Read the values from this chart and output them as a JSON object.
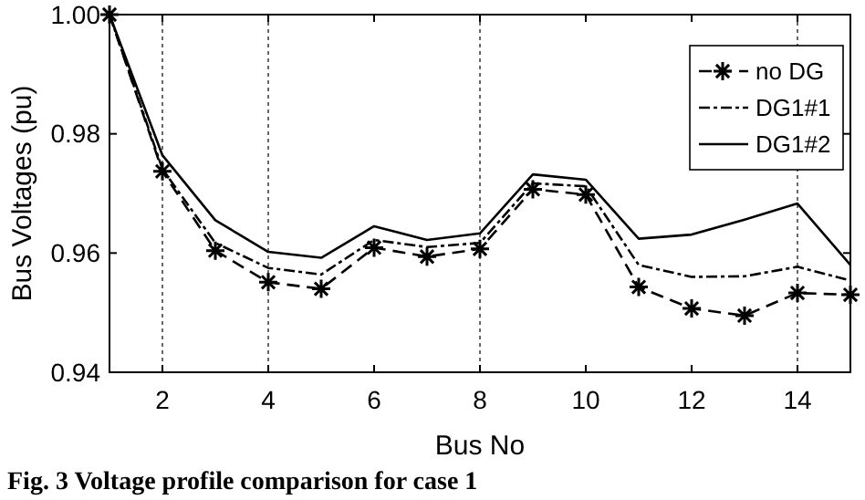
{
  "chart_data": {
    "type": "line",
    "xlabel": "Bus No",
    "ylabel": "Bus Voltages (pu)",
    "x": [
      1,
      2,
      3,
      4,
      5,
      6,
      7,
      8,
      9,
      10,
      11,
      12,
      13,
      14,
      15
    ],
    "series": [
      {
        "name": "no DG",
        "color": "#000000",
        "line_style": "dashed",
        "marker": "cross",
        "values": [
          1.0,
          0.9737,
          0.9604,
          0.9551,
          0.954,
          0.9609,
          0.9594,
          0.9607,
          0.9707,
          0.9698,
          0.9543,
          0.9507,
          0.9495,
          0.9533,
          0.953
        ]
      },
      {
        "name": "DG1#1",
        "color": "#000000",
        "line_style": "dashdot",
        "marker": "none",
        "values": [
          1.0,
          0.9741,
          0.9617,
          0.9575,
          0.9564,
          0.9622,
          0.961,
          0.9617,
          0.9717,
          0.9712,
          0.958,
          0.956,
          0.9561,
          0.9577,
          0.9554
        ]
      },
      {
        "name": "DG1#2",
        "color": "#000000",
        "line_style": "solid",
        "marker": "none",
        "values": [
          1.0,
          0.9764,
          0.9655,
          0.9602,
          0.9592,
          0.9645,
          0.9622,
          0.9633,
          0.9732,
          0.9723,
          0.9624,
          0.9631,
          0.9656,
          0.9683,
          0.958
        ]
      }
    ],
    "xlim": [
      1,
      15
    ],
    "xticks": [
      2,
      4,
      6,
      8,
      10,
      12,
      14
    ],
    "ylim": [
      0.94,
      1.0
    ],
    "yticks": [
      0.94,
      0.96,
      0.98,
      {
        "value": 1.0,
        "label": "1.00"
      }
    ],
    "ref_lines": [
      {
        "axis": "x",
        "value": 2,
        "color": "#444444",
        "line_style": "dotted"
      },
      {
        "axis": "x",
        "value": 4,
        "color": "#444444",
        "line_style": "dotted"
      },
      {
        "axis": "x",
        "value": 8,
        "color": "#444444",
        "line_style": "dotted"
      },
      {
        "axis": "x",
        "value": 14,
        "color": "#444444",
        "line_style": "dotted"
      }
    ],
    "grid": false,
    "legend": "top right",
    "annotations": [
      "Fig. 3   Voltage profile comparison for case 1"
    ]
  }
}
